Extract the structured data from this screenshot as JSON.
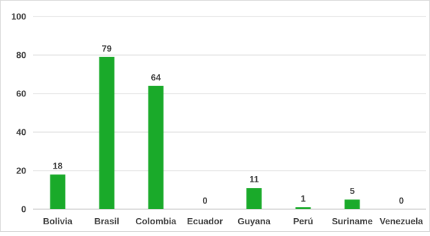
{
  "chart_data": {
    "type": "bar",
    "title": "",
    "xlabel": "",
    "ylabel": "",
    "categories": [
      "Bolivia",
      "Brasil",
      "Colombia",
      "Ecuador",
      "Guyana",
      "Perú",
      "Suriname",
      "Venezuela"
    ],
    "values": [
      18,
      79,
      64,
      0,
      11,
      1,
      5,
      0
    ],
    "ylim": [
      0,
      100
    ],
    "yticks": [
      0,
      20,
      40,
      60,
      80,
      100
    ],
    "grid": true,
    "legend": "none",
    "data_labels": true,
    "bar_color": "#1aaa2a"
  }
}
